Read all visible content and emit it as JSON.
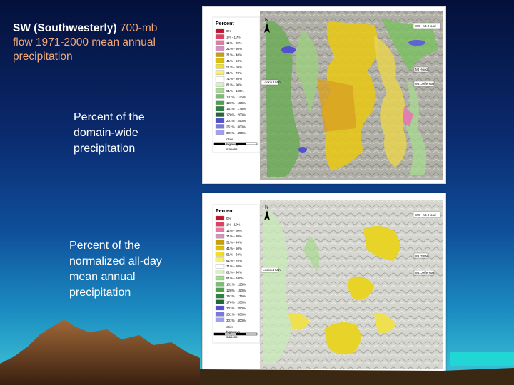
{
  "slide": {
    "title_bold": "SW (Southwesterly)",
    "title_highlight": " 700-mb",
    "title_line2": "flow 1971-2000 mean annual precipitation",
    "caption_top": "Percent of the domain-wide precipitation",
    "caption_bottom": "Percent of the normalized all-day mean annual precipitation"
  },
  "maps": [
    {
      "legend_title": "Percent",
      "legend_items": [
        "0%",
        "1% - 10%",
        "11% - 20%",
        "21% - 30%",
        "31% - 40%",
        "41% - 50%",
        "51% - 60%",
        "61% - 70%",
        "71% - 80%",
        "81% - 90%",
        "91% - 100%",
        "101% - 125%",
        "126% - 150%",
        "151% - 175%",
        "176% - 200%",
        "201% - 250%",
        "251% - 300%",
        "301% - 400%"
      ],
      "legend_colors": [
        "#c8102e",
        "#e04060",
        "#e878a0",
        "#d890c0",
        "#c8a000",
        "#e0c000",
        "#f0e020",
        "#f8f070",
        "#ffffff",
        "#d8f0c8",
        "#a8d890",
        "#78c070",
        "#50a050",
        "#308040",
        "#206838",
        "#5050d0",
        "#7878e0",
        "#a0a0f0"
      ],
      "symbols": [
        "cities",
        "highways",
        "stations"
      ],
      "callouts": [
        "SW - Mt. Hood",
        "Mt Hood",
        "Mt. Jefferson",
        "Lookout Mtn"
      ],
      "north": "N"
    },
    {
      "legend_title": "Percent",
      "legend_items": [
        "0%",
        "1% - 10%",
        "11% - 20%",
        "21% - 30%",
        "31% - 40%",
        "41% - 50%",
        "51% - 60%",
        "61% - 70%",
        "71% - 80%",
        "81% - 90%",
        "91% - 100%",
        "101% - 125%",
        "126% - 150%",
        "151% - 175%",
        "176% - 200%",
        "201% - 250%",
        "251% - 300%",
        "301% - 400%"
      ],
      "legend_colors": [
        "#c8102e",
        "#e04060",
        "#e878a0",
        "#d890c0",
        "#c8a000",
        "#e0c000",
        "#f0e020",
        "#f8f070",
        "#ffffff",
        "#d8f0c8",
        "#a8d890",
        "#78c070",
        "#50a050",
        "#308040",
        "#206838",
        "#5050d0",
        "#7878e0",
        "#a0a0f0"
      ],
      "symbols": [
        "cities",
        "highways",
        "stations"
      ],
      "callouts": [
        "SW - Mt. Hood",
        "Mt Hood",
        "Mt. Jefferson",
        "Lookout Mtn"
      ],
      "north": "N"
    }
  ]
}
